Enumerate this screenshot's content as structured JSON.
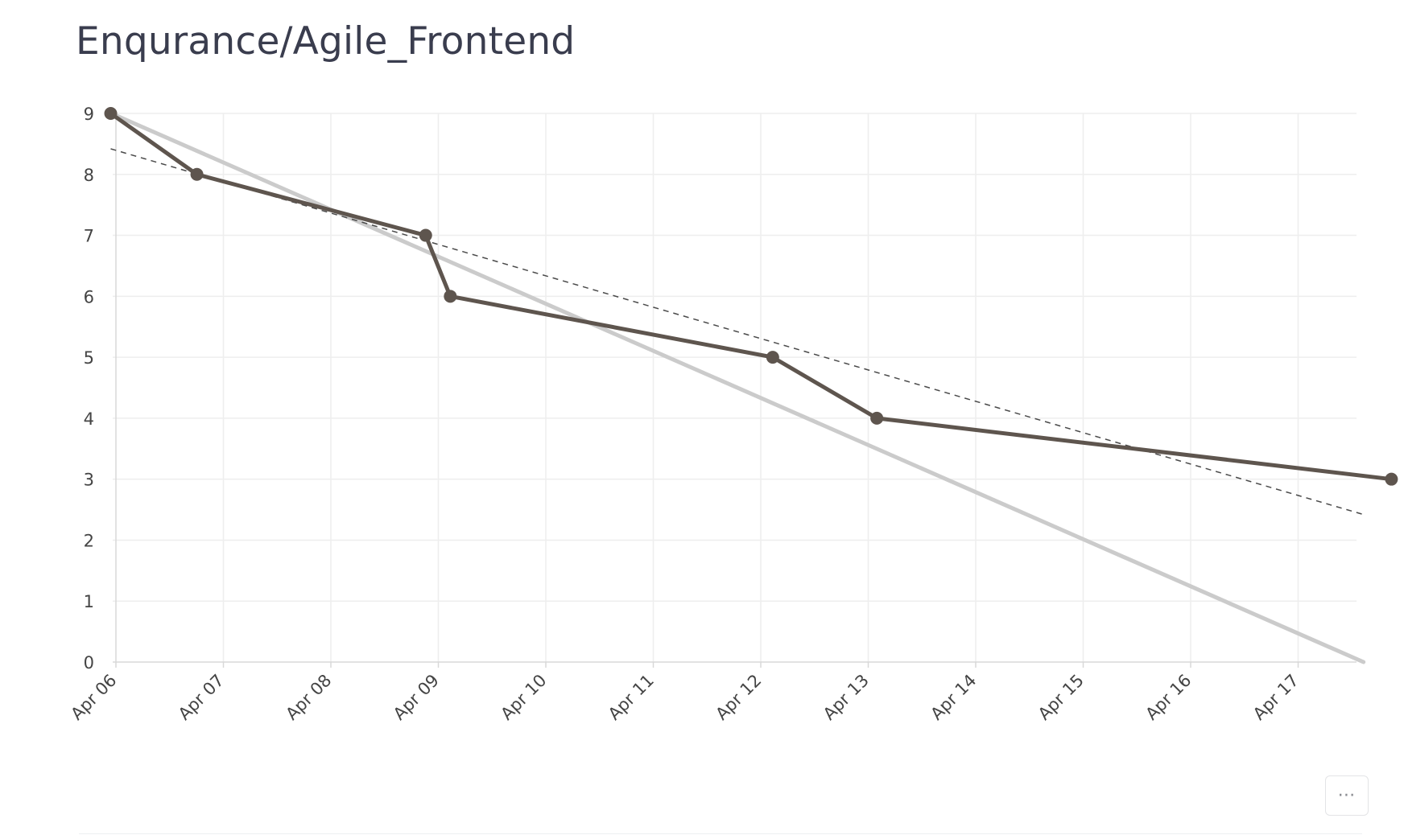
{
  "page": {
    "title": "Enqurance/Agile_Frontend",
    "more_button_label": "⋯"
  },
  "chart_data": {
    "type": "line",
    "title": "Enqurance/Agile_Frontend",
    "xlabel": "",
    "ylabel": "",
    "x_ticks": [
      "Apr 06",
      "Apr 07",
      "Apr 08",
      "Apr 09",
      "Apr 10",
      "Apr 11",
      "Apr 12",
      "Apr 13",
      "Apr 14",
      "Apr 15",
      "Apr 16",
      "Apr 17"
    ],
    "y_ticks": [
      0,
      1,
      2,
      3,
      4,
      5,
      6,
      7,
      8,
      9
    ],
    "xlim": [
      "2024-04-05T23:00",
      "2024-04-17T14:36"
    ],
    "ylim": [
      0,
      9
    ],
    "grid": true,
    "legend": "none",
    "series": [
      {
        "style": "solid-thick",
        "color": "#5e554e",
        "markers": true,
        "points": [
          {
            "x": "2024-04-05T22:50",
            "y": 9
          },
          {
            "x": "2024-04-06T18:05",
            "y": 8
          },
          {
            "x": "2024-04-08T21:10",
            "y": 7
          },
          {
            "x": "2024-04-09T02:40",
            "y": 6
          },
          {
            "x": "2024-04-12T02:40",
            "y": 5
          },
          {
            "x": "2024-04-13T01:55",
            "y": 4
          },
          {
            "x": "2024-04-17T20:50",
            "y": 3
          }
        ]
      },
      {
        "style": "solid-light",
        "color": "#cbcbcb",
        "markers": false,
        "points": [
          {
            "x": "2024-04-05T23:00",
            "y": 9
          },
          {
            "x": "2024-04-17T14:36",
            "y": 0
          }
        ]
      },
      {
        "style": "dashed",
        "color": "#4a4a4a",
        "markers": false,
        "points": [
          {
            "x": "2024-04-05T22:50",
            "y": 8.42
          },
          {
            "x": "2024-04-17T14:36",
            "y": 2.42
          }
        ]
      }
    ]
  },
  "colors": {
    "title": "#3a3d4e",
    "grid": "#eeeeee",
    "axis": "#d8d8d8",
    "tick_label": "#444444",
    "actual_line": "#5e554e",
    "ideal_line": "#cbcbcb",
    "trend_line": "#4a4a4a"
  }
}
